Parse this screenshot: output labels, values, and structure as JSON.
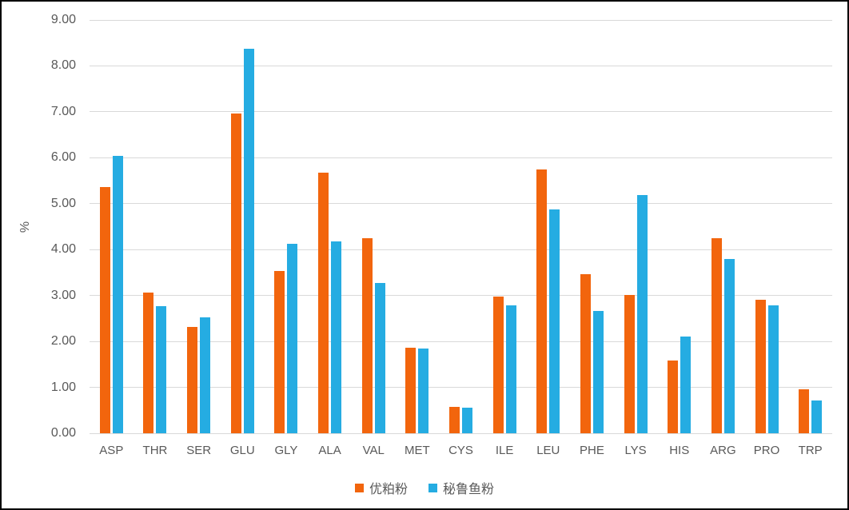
{
  "chart_data": {
    "type": "bar",
    "title": "",
    "xlabel": "",
    "ylabel": "%",
    "ylim": [
      0,
      9
    ],
    "ytick_step": 1,
    "ytick_decimals": 2,
    "grid": "horizontal",
    "gridline_color": "#d9d9d9",
    "axis_text_color": "#595959",
    "legend_position": "bottom",
    "categories": [
      "ASP",
      "THR",
      "SER",
      "GLU",
      "GLY",
      "ALA",
      "VAL",
      "MET",
      "CYS",
      "ILE",
      "LEU",
      "PHE",
      "LYS",
      "HIS",
      "ARG",
      "PRO",
      "TRP"
    ],
    "series": [
      {
        "name": "优粕粉",
        "color": "#f2650d",
        "values": [
          5.37,
          3.06,
          2.31,
          6.97,
          3.54,
          5.67,
          4.25,
          1.86,
          0.57,
          2.98,
          5.75,
          3.47,
          3.02,
          1.58,
          4.25,
          2.91,
          0.96
        ]
      },
      {
        "name": "秘鲁鱼粉",
        "color": "#25ace2",
        "values": [
          6.04,
          2.77,
          2.52,
          8.37,
          4.13,
          4.18,
          3.27,
          1.84,
          0.56,
          2.79,
          4.87,
          2.66,
          5.18,
          2.1,
          3.79,
          2.79,
          0.72
        ]
      }
    ]
  }
}
